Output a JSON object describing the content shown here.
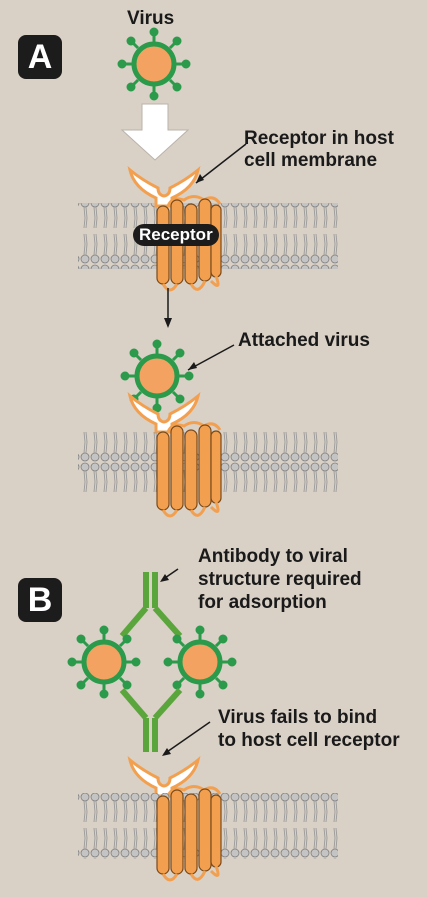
{
  "panels": {
    "a": {
      "badge": "A",
      "virus_label": "Virus",
      "receptor_label_line1": "Receptor in host",
      "receptor_label_line2": "cell membrane",
      "receptor_tag": "Receptor",
      "attached_label": "Attached virus"
    },
    "b": {
      "badge": "B",
      "antibody_line1": "Antibody to viral",
      "antibody_line2": "structure required",
      "antibody_line3": "for adsorption",
      "fail_line1": "Virus fails to bind",
      "fail_line2": "to host cell receptor"
    }
  },
  "colors": {
    "background": "#d9d0c6",
    "virus_shell": "#2c9a4b",
    "virus_core": "#f3a261",
    "receptor": "#f2a04f",
    "antibody": "#5aa63c",
    "membrane": "#b9b9b9",
    "badge": "#1c1c1c"
  }
}
